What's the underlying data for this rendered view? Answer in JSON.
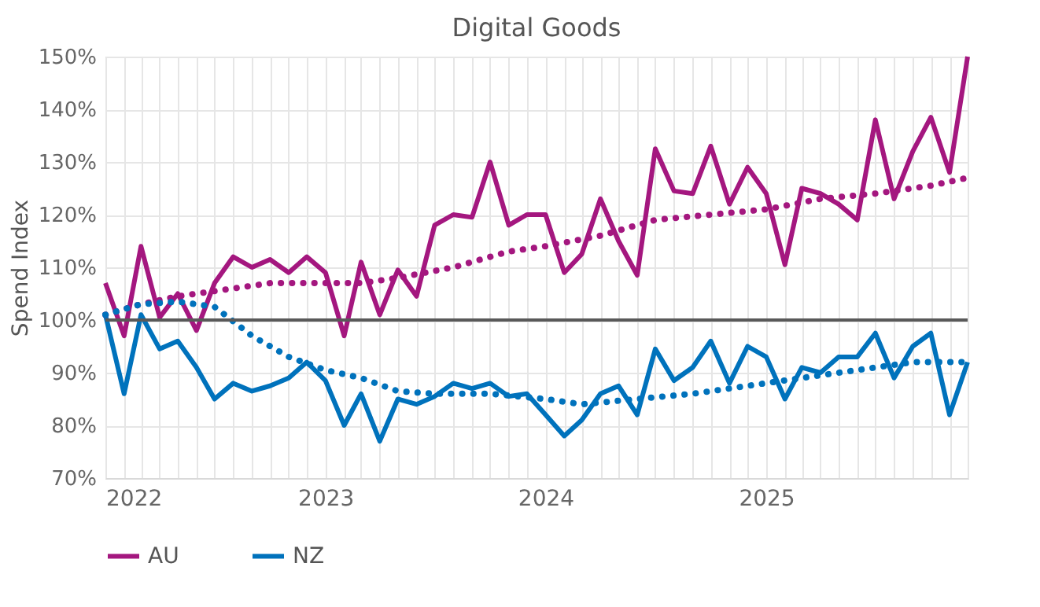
{
  "chart_data": {
    "type": "line",
    "title": "Digital Goods",
    "ylabel": "Spend Index",
    "x": [
      "2022-01",
      "2022-02",
      "2022-03",
      "2022-04",
      "2022-05",
      "2022-06",
      "2022-07",
      "2022-08",
      "2022-09",
      "2022-10",
      "2022-11",
      "2022-12",
      "2023-01",
      "2023-02",
      "2023-03",
      "2023-04",
      "2023-05",
      "2023-06",
      "2023-07",
      "2023-08",
      "2023-09",
      "2023-10",
      "2023-11",
      "2023-12",
      "2024-01",
      "2024-02",
      "2024-03",
      "2024-04",
      "2024-05",
      "2024-06",
      "2024-07",
      "2024-08",
      "2024-09",
      "2024-10",
      "2024-11",
      "2024-12",
      "2025-01",
      "2025-02",
      "2025-03",
      "2025-04",
      "2025-05",
      "2025-06",
      "2025-07",
      "2025-08",
      "2025-09",
      "2025-10",
      "2025-11",
      "2025-12"
    ],
    "series": [
      {
        "name": "AU",
        "color": "#a4177f",
        "values": [
          107,
          97,
          114,
          100.5,
          105,
          98,
          107,
          112,
          110,
          111.5,
          109,
          112,
          109,
          97,
          111,
          101,
          109.5,
          104.5,
          118,
          120,
          119.5,
          130,
          118,
          120,
          120,
          109,
          112.5,
          123,
          115,
          108.5,
          132.5,
          124.5,
          124,
          133,
          122,
          129,
          124,
          110.5,
          125,
          124,
          122,
          119,
          138,
          123,
          132,
          138.5,
          128,
          150
        ]
      },
      {
        "name": "NZ",
        "color": "#0072bc",
        "values": [
          101,
          86,
          101,
          94.5,
          96,
          91,
          85,
          88,
          86.5,
          87.5,
          89,
          92,
          88.5,
          80,
          86,
          77,
          85,
          84,
          85.5,
          88,
          87,
          88,
          85.5,
          86,
          82,
          78,
          81,
          86,
          87.5,
          82,
          94.5,
          88.5,
          91,
          96,
          88,
          95,
          93,
          85,
          91,
          90,
          93,
          93,
          97.5,
          89,
          95,
          97.5,
          82,
          92
        ]
      },
      {
        "type": "line",
        "line_style": "dotted",
        "color": "#a4177f",
        "x": [
          "2022-01",
          "2022-03",
          "2022-05",
          "2022-08",
          "2022-10",
          "2023-01",
          "2023-03",
          "2023-05",
          "2023-08",
          "2023-11",
          "2024-01",
          "2024-04",
          "2024-07",
          "2024-10",
          "2025-01",
          "2025-04",
          "2025-07",
          "2025-10",
          "2025-12"
        ],
        "values": [
          101,
          103,
          104.5,
          106,
          107,
          107,
          107,
          108,
          110,
          113,
          114,
          116,
          119,
          120,
          121,
          123,
          124,
          125.5,
          127
        ]
      },
      {
        "type": "line",
        "line_style": "dotted",
        "color": "#0072bc",
        "x": [
          "2022-01",
          "2022-03",
          "2022-05",
          "2022-07",
          "2022-09",
          "2022-11",
          "2023-01",
          "2023-03",
          "2023-05",
          "2023-07",
          "2023-10",
          "2024-01",
          "2024-03",
          "2024-06",
          "2024-09",
          "2024-12",
          "2025-03",
          "2025-06",
          "2025-09",
          "2025-12"
        ],
        "values": [
          101,
          103,
          103.5,
          102.5,
          97,
          93,
          90.5,
          89,
          86.5,
          86,
          86,
          85,
          84,
          85,
          86,
          87.5,
          89,
          90.5,
          92,
          92
        ]
      }
    ],
    "xlim": [
      "2022-01",
      "2025-12"
    ],
    "xticks": [
      "2022",
      {
        "value": "2022-02",
        "label": null
      },
      {
        "value": "2022-03",
        "label": null
      },
      {
        "value": "2022-04",
        "label": null
      },
      {
        "value": "2022-05",
        "label": null
      },
      {
        "value": "2022-06",
        "label": null
      },
      {
        "value": "2022-07",
        "label": null
      },
      {
        "value": "2022-08",
        "label": null
      },
      {
        "value": "2022-09",
        "label": null
      },
      {
        "value": "2022-10",
        "label": null
      },
      {
        "value": "2022-11",
        "label": null
      },
      {
        "value": "2022-12",
        "label": null
      },
      "2023",
      {
        "value": "2023-02",
        "label": null
      },
      {
        "value": "2023-03",
        "label": null
      },
      {
        "value": "2023-04",
        "label": null
      },
      {
        "value": "2023-05",
        "label": null
      },
      {
        "value": "2023-06",
        "label": null
      },
      {
        "value": "2023-07",
        "label": null
      },
      {
        "value": "2023-08",
        "label": null
      },
      {
        "value": "2023-09",
        "label": null
      },
      {
        "value": "2023-10",
        "label": null
      },
      {
        "value": "2023-11",
        "label": null
      },
      {
        "value": "2023-12",
        "label": null
      },
      "2024",
      {
        "value": "2024-02",
        "label": null
      },
      {
        "value": "2024-03",
        "label": null
      },
      {
        "value": "2024-04",
        "label": null
      },
      {
        "value": "2024-05",
        "label": null
      },
      {
        "value": "2024-06",
        "label": null
      },
      {
        "value": "2024-07",
        "label": null
      },
      {
        "value": "2024-08",
        "label": null
      },
      {
        "value": "2024-09",
        "label": null
      },
      {
        "value": "2024-10",
        "label": null
      },
      {
        "value": "2024-11",
        "label": null
      },
      {
        "value": "2024-12",
        "label": null
      },
      "2025",
      {
        "value": "2025-02",
        "label": null
      },
      {
        "value": "2025-03",
        "label": null
      },
      {
        "value": "2025-04",
        "label": null
      },
      {
        "value": "2025-05",
        "label": null
      },
      {
        "value": "2025-06",
        "label": null
      },
      {
        "value": "2025-07",
        "label": null
      },
      {
        "value": "2025-08",
        "label": null
      },
      {
        "value": "2025-09",
        "label": null
      },
      {
        "value": "2025-10",
        "label": null
      },
      {
        "value": "2025-11",
        "label": null
      },
      {
        "value": "2025-12",
        "label": null
      }
    ],
    "ylim": [
      70,
      150
    ],
    "yticks": [
      {
        "value": 70,
        "label": "70%"
      },
      {
        "value": 80,
        "label": "80%"
      },
      {
        "value": 90,
        "label": "90%"
      },
      {
        "value": 100,
        "label": "100%"
      },
      {
        "value": 110,
        "label": "110%"
      },
      {
        "value": 120,
        "label": "120%"
      },
      {
        "value": 130,
        "label": "130%"
      },
      {
        "value": 140,
        "label": "140%"
      },
      {
        "value": 150,
        "label": "150%"
      }
    ],
    "ref_lines": [
      {
        "axis": "y",
        "value": 100,
        "color": "#595959"
      }
    ],
    "grid": true,
    "legend": "bottom",
    "marker": "none",
    "line_style": "solid"
  }
}
